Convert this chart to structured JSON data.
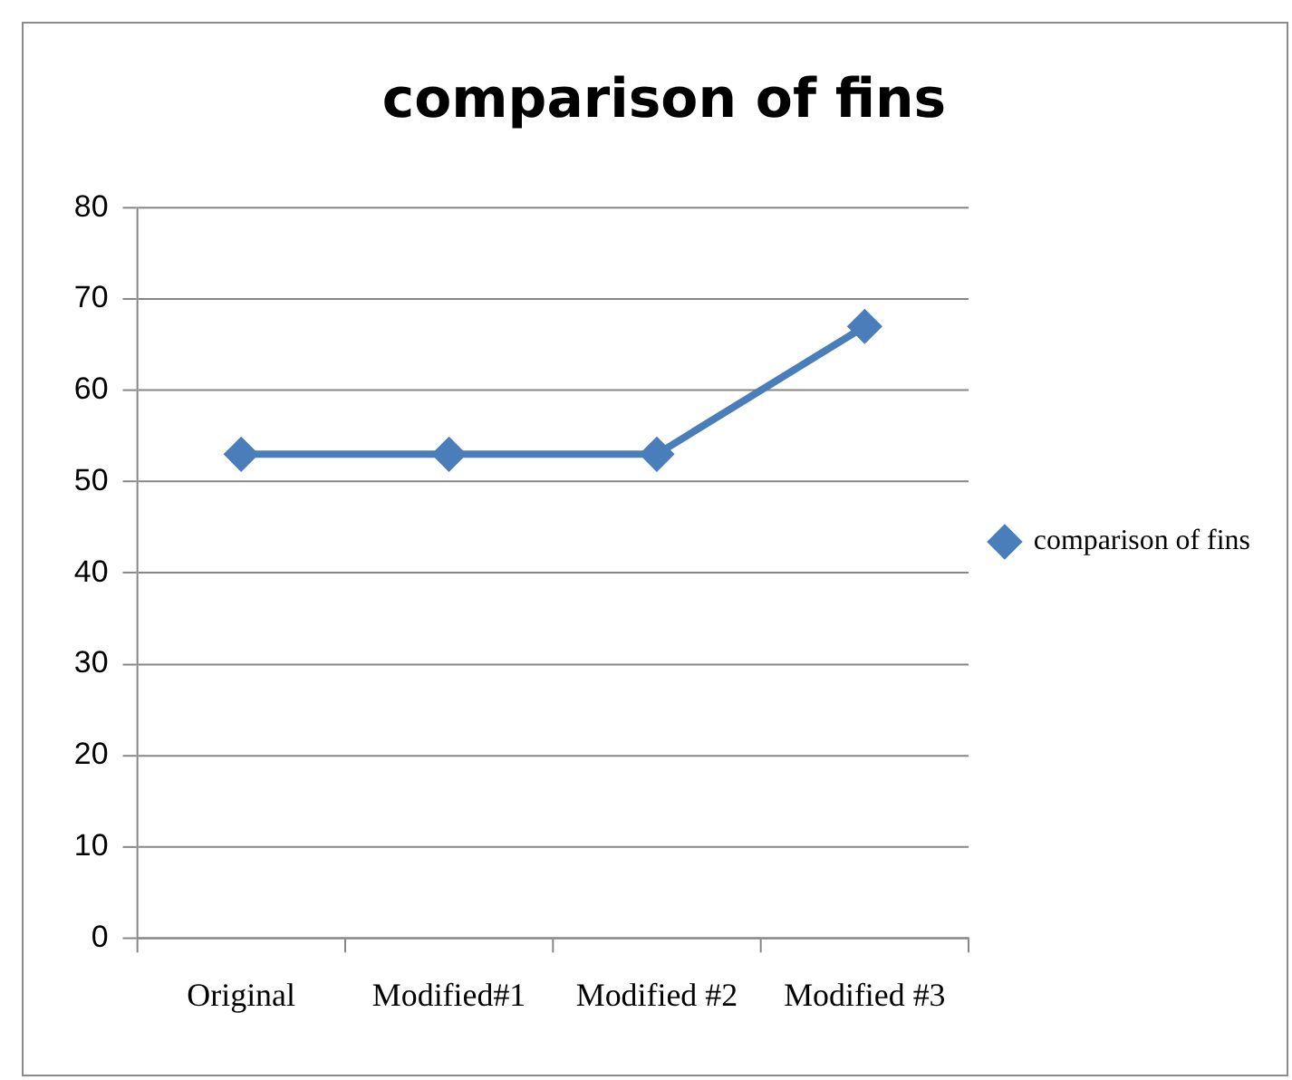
{
  "chart_data": {
    "type": "line",
    "title": "comparison of fins",
    "categories": [
      "Original",
      "Modified#1",
      "Modified #2",
      "Modified #3"
    ],
    "series": [
      {
        "name": "comparison of fins",
        "color": "#4a7ebb",
        "values": [
          53,
          53,
          53,
          67
        ]
      }
    ],
    "ylim": [
      0,
      80
    ],
    "yticks": [
      0,
      10,
      20,
      30,
      40,
      50,
      60,
      70,
      80
    ],
    "grid": "y",
    "legend": "right",
    "marker": "diamond",
    "line_style": "solid"
  }
}
